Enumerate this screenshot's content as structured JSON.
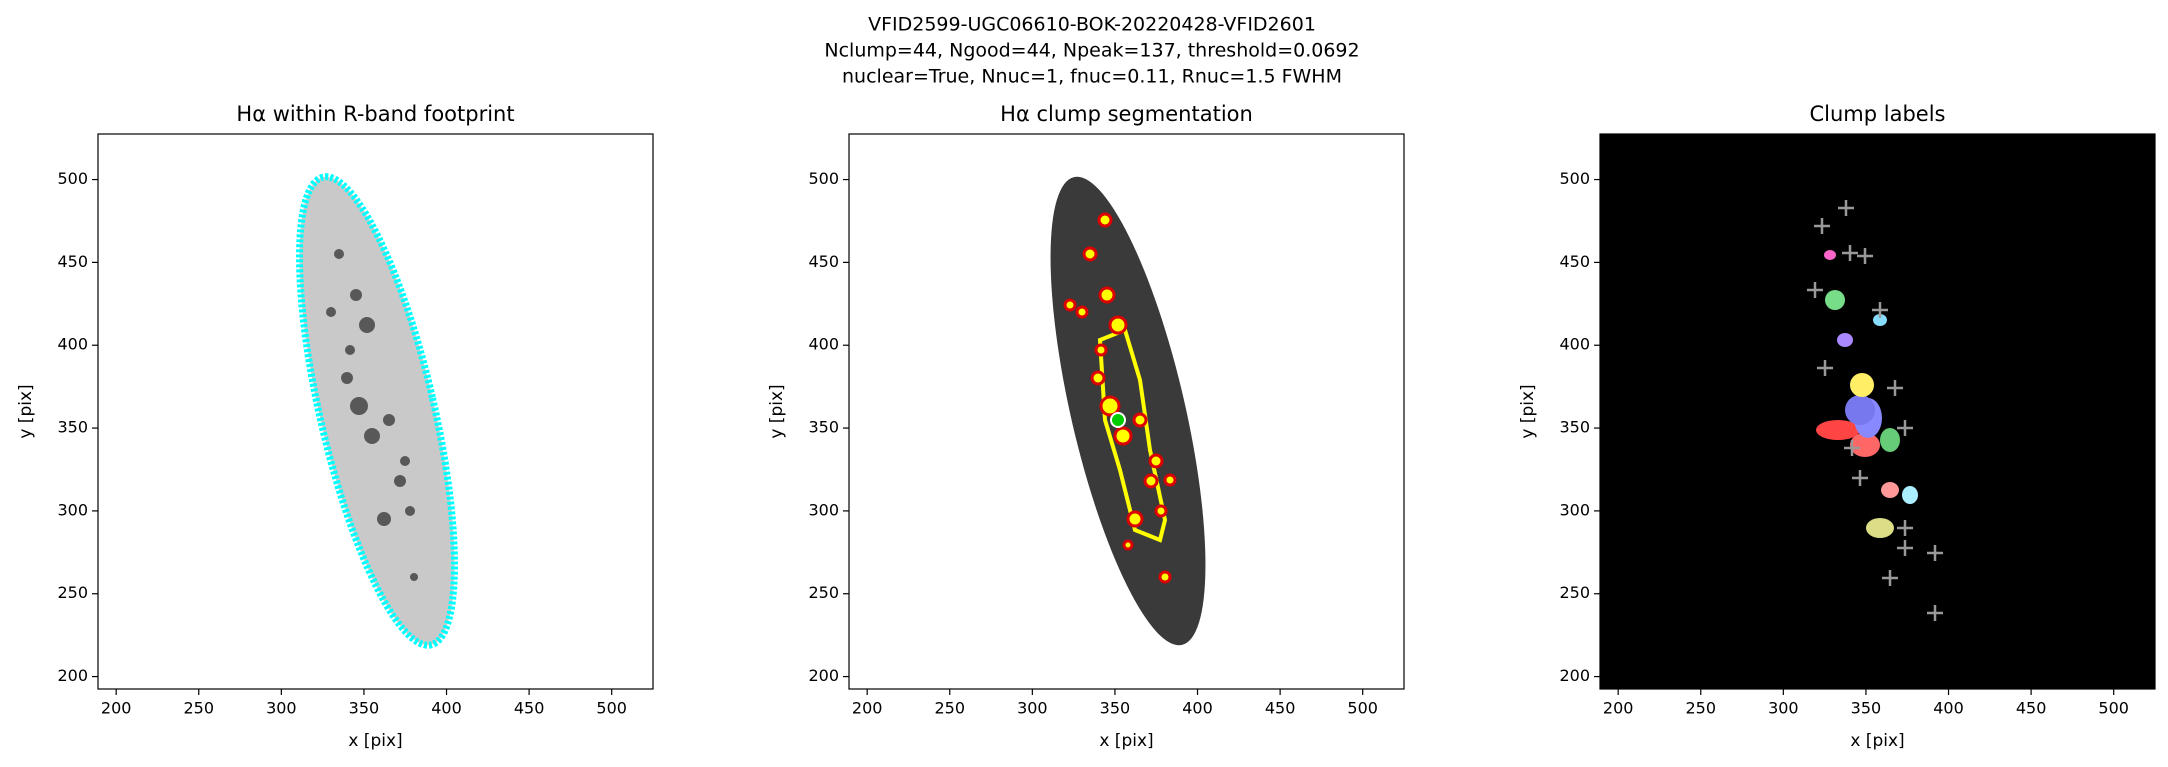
{
  "suptitle": [
    "VFID2599-UGC06610-BOK-20220428-VFID2601",
    "Nclump=44, Ngood=44, Npeak=137, threshold=0.0692",
    "nuclear=True, Nnuc=1, fnuc=0.11, Rnuc=1.5 FWHM"
  ],
  "chart_data": [
    {
      "type": "image",
      "title": "Hα within R-band footprint",
      "xlabel": "x [pix]",
      "ylabel": "y [pix]",
      "facecolor": "#ffffff",
      "xlim": [
        189,
        525
      ],
      "ylim": [
        192.5,
        527.5
      ],
      "xticks": [
        200,
        250,
        300,
        350,
        400,
        450,
        500
      ],
      "yticks": [
        200,
        250,
        300,
        350,
        400,
        450,
        500
      ]
    },
    {
      "type": "image",
      "title": "Hα clump segmentation",
      "xlabel": "x [pix]",
      "ylabel": "y [pix]",
      "facecolor": "#ffffff",
      "xlim": [
        189,
        525
      ],
      "ylim": [
        192.5,
        527.5
      ],
      "xticks": [
        200,
        250,
        300,
        350,
        400,
        450,
        500
      ],
      "yticks": [
        200,
        250,
        300,
        350,
        400,
        450,
        500
      ]
    },
    {
      "type": "image",
      "title": "Clump labels",
      "xlabel": "x [pix]",
      "ylabel": "y [pix]",
      "facecolor": "#000000",
      "xlim": [
        189,
        525
      ],
      "ylim": [
        192.5,
        527.5
      ],
      "xticks": [
        200,
        250,
        300,
        350,
        400,
        450,
        500
      ],
      "yticks": [
        200,
        250,
        300,
        350,
        400,
        450,
        500
      ]
    }
  ]
}
